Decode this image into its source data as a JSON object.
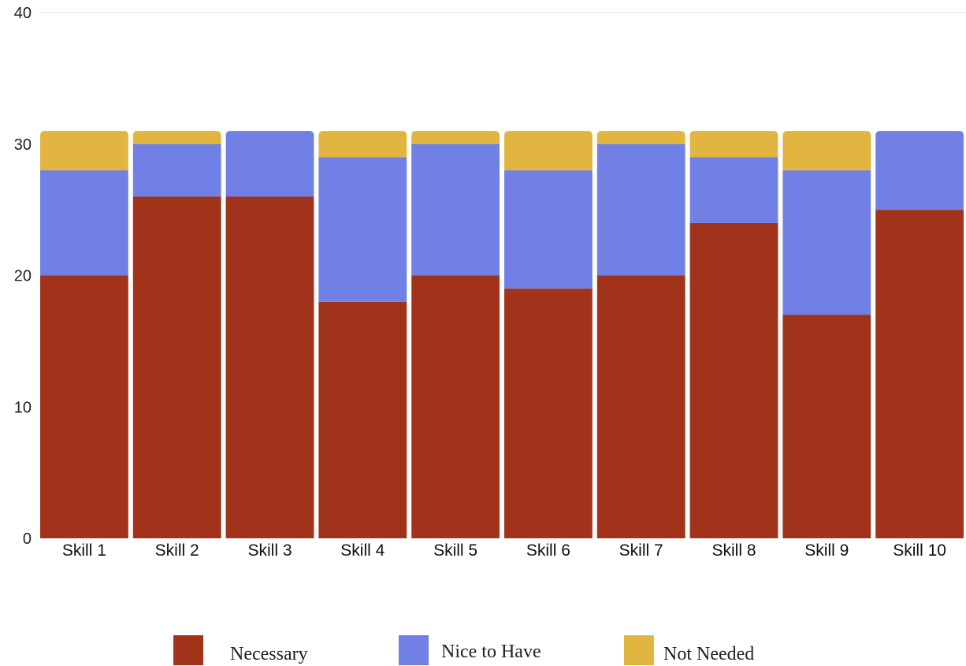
{
  "chart_data": {
    "type": "bar",
    "stacked": true,
    "title": "",
    "xlabel": "",
    "ylabel": "",
    "ylim": [
      0,
      40
    ],
    "yticks": [
      0,
      10,
      20,
      30,
      40
    ],
    "grid": "top line only",
    "legend_position": "bottom",
    "categories": [
      "Skill 1",
      "Skill 2",
      "Skill 3",
      "Skill 4",
      "Skill 5",
      "Skill 6",
      "Skill 7",
      "Skill 8",
      "Skill 9",
      "Skill 10"
    ],
    "series": [
      {
        "name": "Necessary",
        "color": "#a1331a",
        "values": [
          20,
          26,
          26,
          18,
          20,
          19,
          20,
          24,
          17,
          25
        ]
      },
      {
        "name": "Nice to Have",
        "color": "#7080e4",
        "values": [
          8,
          4,
          5,
          11,
          10,
          9,
          10,
          5,
          11,
          6
        ]
      },
      {
        "name": "Not Needed",
        "color": "#e2b540",
        "values": [
          3,
          1,
          0,
          2,
          1,
          3,
          1,
          2,
          3,
          0
        ]
      }
    ]
  }
}
